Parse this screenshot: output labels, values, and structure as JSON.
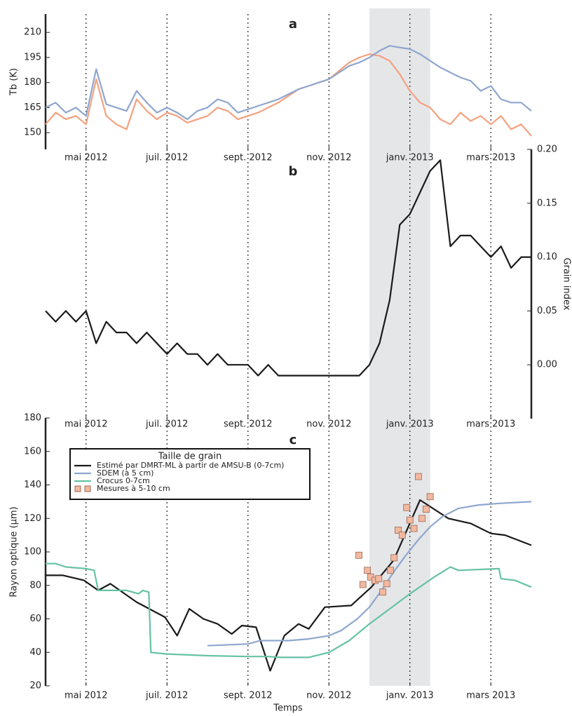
{
  "chart_data": [
    {
      "type": "line",
      "title": "a",
      "y_label": "Tb (K)",
      "xlim": [
        0,
        12
      ],
      "ylim": [
        140,
        221
      ],
      "yticks": [
        150,
        165,
        180,
        195,
        210
      ],
      "y_axis_side": "left",
      "grid": "x",
      "shaded_span": [
        8,
        9.5
      ],
      "xticks": [
        {
          "value": 1,
          "label": "mai 2012"
        },
        {
          "value": 3,
          "label": "juil. 2012"
        },
        {
          "value": 5,
          "label": "sept. 2012"
        },
        {
          "value": 7,
          "label": "nov. 2012"
        },
        {
          "value": 9,
          "label": "janv. 2013"
        },
        {
          "value": 11,
          "label": "mars 2013"
        }
      ],
      "series": [
        {
          "color": "#f4a17f",
          "x": [
            0,
            0.25,
            0.5,
            0.75,
            1,
            1.25,
            1.5,
            1.75,
            2,
            2.25,
            2.5,
            2.75,
            3,
            3.25,
            3.5,
            3.75,
            4,
            4.25,
            4.5,
            4.75,
            5,
            5.25,
            5.5,
            5.75,
            6,
            6.25,
            6.5,
            6.75,
            7,
            7.25,
            7.5,
            7.75,
            8,
            8.25,
            8.5,
            8.75,
            9,
            9.25,
            9.5,
            9.75,
            10,
            10.25,
            10.5,
            10.75,
            11,
            11.25,
            11.5,
            11.75,
            12
          ],
          "values": [
            155,
            162,
            158,
            160,
            155,
            182,
            160,
            155,
            152,
            170,
            163,
            158,
            162,
            160,
            156,
            158,
            160,
            165,
            163,
            158,
            160,
            162,
            165,
            168,
            172,
            176,
            178,
            180,
            182,
            187,
            192,
            195,
            197,
            196,
            193,
            185,
            175,
            168,
            165,
            158,
            155,
            162,
            157,
            160,
            155,
            160,
            152,
            155,
            148
          ]
        },
        {
          "color": "#8fa6cf",
          "x": [
            0,
            0.25,
            0.5,
            0.75,
            1,
            1.25,
            1.5,
            1.75,
            2,
            2.25,
            2.5,
            2.75,
            3,
            3.25,
            3.5,
            3.75,
            4,
            4.25,
            4.5,
            4.75,
            5,
            5.25,
            5.5,
            5.75,
            6,
            6.25,
            6.5,
            6.75,
            7,
            7.25,
            7.5,
            7.75,
            8,
            8.25,
            8.5,
            8.75,
            9,
            9.25,
            9.5,
            9.75,
            10,
            10.25,
            10.5,
            10.75,
            11,
            11.25,
            11.5,
            11.75,
            12
          ],
          "values": [
            165,
            168,
            162,
            165,
            160,
            188,
            167,
            165,
            163,
            175,
            168,
            162,
            165,
            162,
            158,
            163,
            165,
            170,
            168,
            162,
            164,
            166,
            168,
            170,
            173,
            176,
            178,
            180,
            182,
            186,
            190,
            192,
            195,
            199,
            202,
            201,
            200,
            197,
            193,
            189,
            186,
            183,
            181,
            175,
            178,
            170,
            168,
            168,
            163
          ]
        }
      ]
    },
    {
      "type": "line",
      "title": "b",
      "y_label": "Grain index",
      "xlim": [
        0,
        12
      ],
      "ylim": [
        -0.05,
        0.2
      ],
      "y_axis_side": "right",
      "grid": "x",
      "shaded_span": [
        8,
        9.5
      ],
      "yticks": [
        {
          "value": 0,
          "label": "0.00"
        },
        {
          "value": 0.05,
          "label": "0.05"
        },
        {
          "value": 0.1,
          "label": "0.10"
        },
        {
          "value": 0.15,
          "label": "0.15"
        },
        {
          "value": 0.2,
          "label": "0.20"
        }
      ],
      "xticks": [
        {
          "value": 1,
          "label": "mai 2012"
        },
        {
          "value": 3,
          "label": "juil. 2012"
        },
        {
          "value": 5,
          "label": "sept. 2012"
        },
        {
          "value": 7,
          "label": "nov. 2012"
        },
        {
          "value": 9,
          "label": "janv. 2013"
        },
        {
          "value": 11,
          "label": "mars 2013"
        }
      ],
      "series": [
        {
          "color": "#1a1a1a",
          "x": [
            0,
            0.25,
            0.5,
            0.75,
            1,
            1.25,
            1.5,
            1.75,
            2,
            2.25,
            2.5,
            2.75,
            3,
            3.25,
            3.5,
            3.75,
            4,
            4.25,
            4.5,
            4.75,
            5,
            5.25,
            5.5,
            5.75,
            6,
            6.25,
            6.5,
            6.75,
            7,
            7.25,
            7.5,
            7.75,
            8,
            8.25,
            8.5,
            8.75,
            9,
            9.25,
            9.5,
            9.75,
            10,
            10.25,
            10.5,
            10.75,
            11,
            11.25,
            11.5,
            11.75,
            12
          ],
          "values": [
            0.05,
            0.04,
            0.05,
            0.04,
            0.05,
            0.02,
            0.04,
            0.03,
            0.03,
            0.02,
            0.03,
            0.02,
            0.01,
            0.02,
            0.01,
            0.01,
            0.0,
            0.01,
            0.0,
            0.0,
            0.0,
            -0.01,
            0.0,
            -0.01,
            -0.01,
            -0.01,
            -0.01,
            -0.01,
            -0.01,
            -0.01,
            -0.01,
            -0.01,
            0.0,
            0.02,
            0.06,
            0.13,
            0.14,
            0.16,
            0.18,
            0.19,
            0.11,
            0.12,
            0.12,
            0.11,
            0.1,
            0.11,
            0.09,
            0.1,
            0.1
          ]
        }
      ]
    },
    {
      "type": "line",
      "title": "c",
      "y_label": "Rayon optique (μm)",
      "x_label": "Temps",
      "xlim": [
        0,
        12
      ],
      "ylim": [
        20,
        180
      ],
      "yticks": [
        20,
        40,
        60,
        80,
        100,
        120,
        140,
        160,
        180
      ],
      "y_axis_side": "left",
      "grid": "x",
      "shaded_span": [
        8,
        9.5
      ],
      "xticks": [
        {
          "value": 1,
          "label": "mai 2012"
        },
        {
          "value": 3,
          "label": "juil. 2012"
        },
        {
          "value": 5,
          "label": "sept. 2012"
        },
        {
          "value": 7,
          "label": "nov. 2012"
        },
        {
          "value": 9,
          "label": "janv. 2013"
        },
        {
          "value": 11,
          "label": "mars 2013"
        }
      ],
      "legend_title": "Taille de grain",
      "legend": "upper left",
      "series": [
        {
          "name": "Estimé par DMRT-ML à partir de AMSU-B (0-7cm)",
          "color": "#1a1a1a",
          "x": [
            0,
            0.43,
            0.95,
            1.3,
            1.6,
            2.25,
            2.95,
            3.25,
            3.55,
            3.9,
            4.25,
            4.6,
            4.85,
            5.2,
            5.55,
            5.9,
            6.25,
            6.5,
            6.9,
            7.55,
            8.05,
            8.6,
            9.25,
            9.95,
            10.5,
            11.0,
            11.35,
            12
          ],
          "values": [
            86,
            86,
            83,
            77,
            81,
            70,
            61,
            50,
            66,
            60,
            57,
            51,
            56,
            55,
            29,
            50,
            57,
            54,
            67,
            68,
            79,
            95,
            131,
            120,
            117,
            111,
            110,
            104
          ]
        },
        {
          "name": "SDEM (à 5 cm)",
          "color": "#8fa6cf",
          "x": [
            4,
            5,
            5.3,
            6,
            6.5,
            7,
            7.3,
            7.7,
            8,
            8.3,
            8.6,
            8.9,
            9.2,
            9.5,
            9.8,
            10.2,
            10.7,
            11.2,
            12
          ],
          "values": [
            44,
            45,
            47,
            47,
            48,
            50,
            53,
            60,
            67,
            77,
            88,
            98,
            107,
            115,
            121,
            126,
            128,
            129,
            130
          ]
        },
        {
          "name": "Crocus 0-7cm",
          "color": "#66c2a5",
          "x": [
            0,
            0.25,
            0.5,
            1,
            1.2,
            1.3,
            1.7,
            2,
            2.3,
            2.4,
            2.55,
            2.6,
            3,
            4,
            5,
            5.5,
            5.8,
            6.5,
            7,
            7.5,
            8,
            8.5,
            9,
            9.3,
            9.6,
            10,
            10.2,
            11.2,
            11.25,
            11.6,
            11.9,
            12
          ],
          "values": [
            93,
            93,
            91,
            90,
            89,
            77,
            77,
            77,
            75,
            77,
            76,
            40,
            39,
            38,
            37.5,
            37.5,
            37,
            37,
            40,
            47,
            57,
            66,
            75,
            80,
            85,
            91,
            89,
            90,
            84,
            83,
            80,
            79
          ]
        },
        {
          "name": "Mesures à 5-10 cm",
          "color": "#f2b8a0",
          "marker": "square",
          "x": [
            7.74,
            7.84,
            7.95,
            8.03,
            8.14,
            8.23,
            8.33,
            8.43,
            8.52,
            8.61,
            8.71,
            8.81,
            8.92,
            9.0,
            9.1,
            9.21,
            9.3,
            9.4,
            9.5
          ],
          "values": [
            98,
            80.5,
            89,
            85,
            83,
            84,
            76,
            81,
            89,
            96.5,
            113,
            110,
            126.5,
            119,
            114,
            145,
            120,
            125.5,
            133
          ]
        }
      ]
    }
  ]
}
